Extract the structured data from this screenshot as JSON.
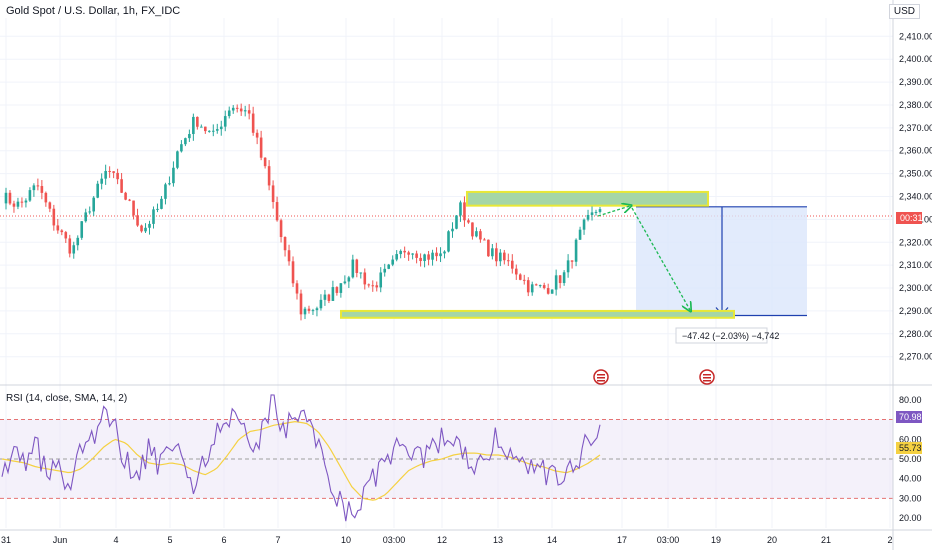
{
  "header": {
    "title": "Gold Spot / U.S. Dollar, 1h, FX_IDC",
    "currency": "USD"
  },
  "colors": {
    "up": "#26a69a",
    "down": "#ef5350",
    "zone_fill": "#a5d6a7",
    "zone_border": "#e8e836",
    "target_fill": "#dbe6fb",
    "target_border": "#1e40af",
    "arrow": "#1db954",
    "rsi_line": "#7e57c2",
    "rsi_ma": "#f5d142"
  },
  "chart_data": [
    {
      "type": "candlestick",
      "title": "Gold Spot / U.S. Dollar, 1h, FX_IDC",
      "ylabel": "",
      "ylim": [
        2262,
        2418
      ],
      "y_ticks": [
        2270,
        2280,
        2290,
        2300,
        2310,
        2320,
        2330,
        2340,
        2350,
        2360,
        2370,
        2380,
        2390,
        2400,
        2410
      ],
      "x_ticks": [
        "31",
        "Jun",
        "4",
        "5",
        "6",
        "7",
        "10",
        "03:00",
        "12",
        "13",
        "14",
        "17",
        "03:00",
        "19",
        "20",
        "21",
        "2"
      ],
      "current_price_label": "00:31",
      "current_price_value": 2331.5,
      "ohlc_anchors": [
        [
          2344,
          2340
        ],
        [
          2342,
          2336
        ],
        [
          2336,
          2345
        ],
        [
          2340,
          2328
        ],
        [
          2322,
          2316
        ],
        [
          2330,
          2336
        ],
        [
          2330,
          2352
        ],
        [
          2354,
          2340
        ],
        [
          2340,
          2325
        ],
        [
          2325,
          2336
        ],
        [
          2355,
          2360
        ],
        [
          2375,
          2374
        ],
        [
          2362,
          2366
        ],
        [
          2372,
          2380
        ],
        [
          2385,
          2377
        ],
        [
          2375,
          2350
        ],
        [
          2345,
          2318
        ],
        [
          2315,
          2290
        ],
        [
          2290,
          2292
        ],
        [
          2292,
          2300
        ],
        [
          2305,
          2310
        ],
        [
          2310,
          2300
        ],
        [
          2300,
          2308
        ],
        [
          2312,
          2318
        ],
        [
          2318,
          2314
        ],
        [
          2316,
          2314
        ],
        [
          2325,
          2336
        ],
        [
          2330,
          2322
        ],
        [
          2320,
          2314
        ],
        [
          2315,
          2310
        ],
        [
          2310,
          2300
        ],
        [
          2298,
          2300
        ],
        [
          2301,
          2306
        ],
        [
          2310,
          2326
        ],
        [
          2330,
          2336
        ]
      ],
      "annotations": {
        "resistance_zone": {
          "price_low": 2336,
          "price_high": 2342
        },
        "support_zone": {
          "price_low": 2287,
          "price_high": 2290
        },
        "target_box": {
          "price_top": 2335.5,
          "price_bottom": 2288,
          "label": "−47.42 (−2.03%) −4,742"
        }
      }
    },
    {
      "type": "line",
      "title": "RSI (14, close, SMA, 14, 2)",
      "ylim": [
        15,
        86
      ],
      "y_ticks": [
        20,
        30,
        40,
        50,
        60,
        70,
        80
      ],
      "bands": {
        "upper": 70,
        "middle": 50,
        "lower": 30
      },
      "last_rsi_label": "70.98",
      "last_ma_label": "55.73",
      "rsi_anchors": [
        48,
        52,
        45,
        58,
        40,
        45,
        36,
        55,
        62,
        70,
        65,
        48,
        38,
        55,
        46,
        62,
        45,
        35,
        50,
        62,
        72,
        65,
        58,
        62,
        78,
        60,
        75,
        70,
        58,
        42,
        28,
        22,
        30,
        40,
        50,
        55,
        48,
        50,
        55,
        62,
        56,
        52,
        48,
        55,
        62,
        52,
        45,
        48,
        44,
        42,
        40,
        50,
        60,
        70
      ],
      "ma_anchors": [
        50,
        49,
        48,
        46,
        45,
        44,
        43,
        45,
        50,
        56,
        60,
        58,
        52,
        48,
        47,
        48,
        47,
        44,
        42,
        45,
        52,
        60,
        64,
        65,
        67,
        68,
        69,
        68,
        64,
        56,
        46,
        36,
        30,
        29,
        32,
        38,
        44,
        47,
        49,
        50,
        52,
        53,
        53,
        52,
        52,
        51,
        49,
        47,
        46,
        44,
        43,
        45,
        48,
        52
      ]
    }
  ]
}
